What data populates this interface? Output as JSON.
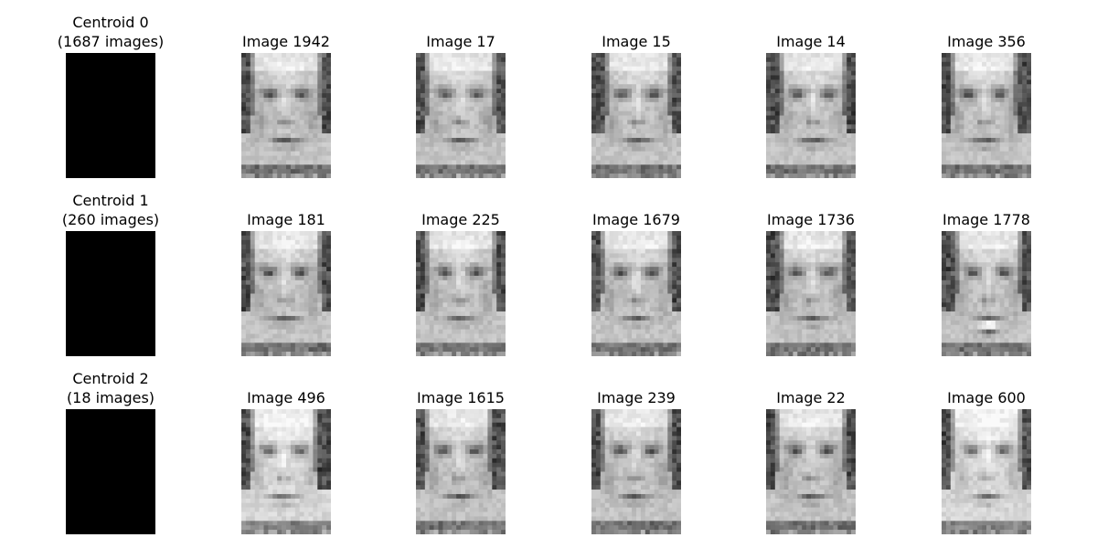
{
  "grid": {
    "rows": [
      {
        "centroid_title": "Centroid 0\n(1687 images)",
        "images": [
          {
            "title": "Image 1942"
          },
          {
            "title": "Image 17"
          },
          {
            "title": "Image 15"
          },
          {
            "title": "Image 14"
          },
          {
            "title": "Image 356"
          }
        ]
      },
      {
        "centroid_title": "Centroid 1\n(260 images)",
        "images": [
          {
            "title": "Image 181"
          },
          {
            "title": "Image 225"
          },
          {
            "title": "Image 1679"
          },
          {
            "title": "Image 1736"
          },
          {
            "title": "Image 1778"
          }
        ]
      },
      {
        "centroid_title": "Centroid 2\n(18 images)",
        "images": [
          {
            "title": "Image 496"
          },
          {
            "title": "Image 1615"
          },
          {
            "title": "Image 239"
          },
          {
            "title": "Image 22"
          },
          {
            "title": "Image 600"
          }
        ]
      }
    ]
  },
  "colors": {
    "centroid_fill": "#000000",
    "background": "#ffffff"
  }
}
